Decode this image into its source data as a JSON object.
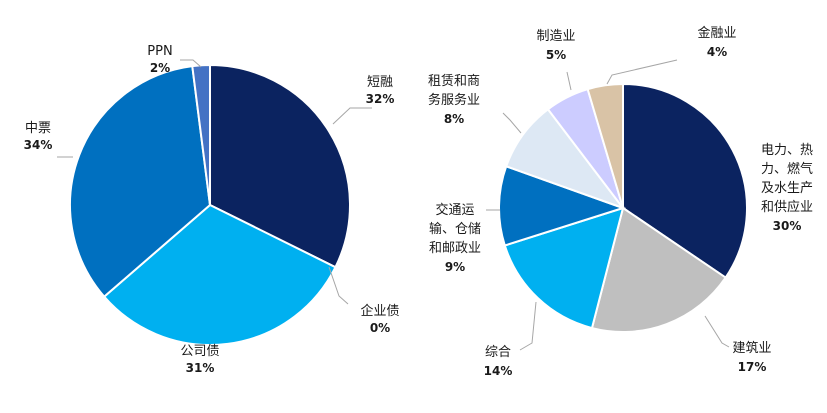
{
  "chart_data": [
    {
      "type": "pie",
      "slices": [
        {
          "label": "短融",
          "pct": "32%",
          "value": 32,
          "color": "#0b2360"
        },
        {
          "label": "企业债",
          "pct": "0%",
          "value": 0,
          "color": "#00bcd4"
        },
        {
          "label": "公司债",
          "pct": "31%",
          "value": 31,
          "color": "#00b0f0"
        },
        {
          "label": "中票",
          "pct": "34%",
          "value": 34,
          "color": "#0070c0"
        },
        {
          "label": "PPN",
          "pct": "2%",
          "value": 2,
          "color": "#4472c4"
        }
      ]
    },
    {
      "type": "pie",
      "slices": [
        {
          "label": [
            "电力、热",
            "力、燃气",
            "及水生产",
            "和供应业"
          ],
          "pct": "30%",
          "value": 30,
          "color": "#0b2360"
        },
        {
          "label": [
            "建筑业"
          ],
          "pct": "17%",
          "value": 17,
          "color": "#bfbfbf"
        },
        {
          "label": [
            "综合"
          ],
          "pct": "14%",
          "value": 14,
          "color": "#00b0f0"
        },
        {
          "label": [
            "交通运",
            "输、仓储",
            "和邮政业"
          ],
          "pct": "9%",
          "value": 9,
          "color": "#0070c0"
        },
        {
          "label": [
            "租赁和商",
            "务服务业"
          ],
          "pct": "8%",
          "value": 8,
          "color": "#dde8f4"
        },
        {
          "label": [
            "制造业"
          ],
          "pct": "5%",
          "value": 5,
          "color": "#ccccff"
        },
        {
          "label": [
            "金融业"
          ],
          "pct": "4%",
          "value": 4,
          "color": "#d9c3a6"
        }
      ]
    }
  ]
}
